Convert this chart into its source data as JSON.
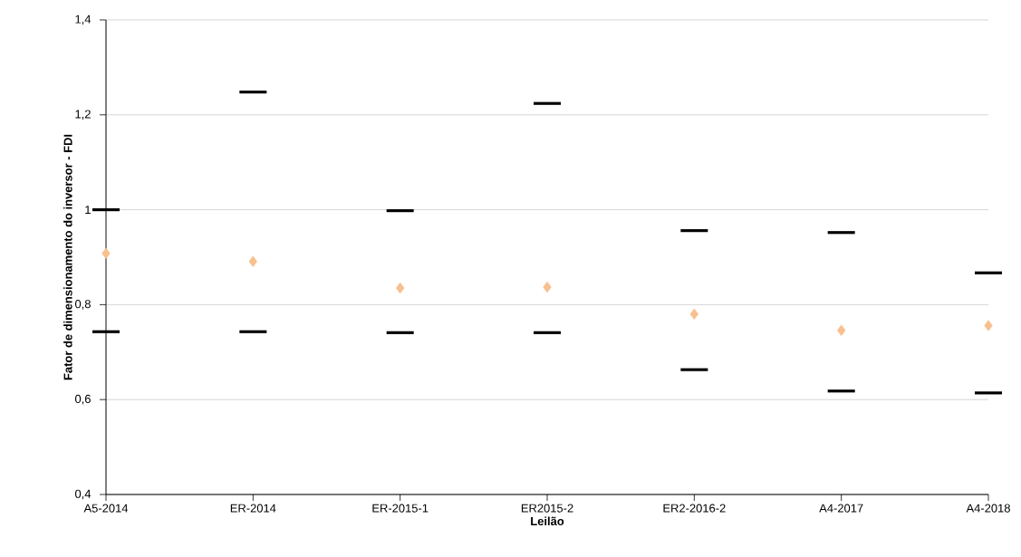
{
  "chart_data": {
    "type": "scatter",
    "xlabel": "Leilão",
    "ylabel": "Fator de dimensionamento do inversor - FDI",
    "categories": [
      "A5-2014",
      "ER-2014",
      "ER-2015-1",
      "ER2015-2",
      "ER2-2016-2",
      "A4-2017",
      "A4-2018"
    ],
    "series": [
      {
        "color": "#f8c08f",
        "values": [
          0.908,
          0.891,
          0.835,
          0.837,
          0.78,
          0.746,
          0.756
        ],
        "errors": [
          [
            0.743,
            1.0
          ],
          [
            0.743,
            1.248
          ],
          [
            0.741,
            0.998
          ],
          [
            0.741,
            1.224
          ],
          [
            0.663,
            0.956
          ],
          [
            0.618,
            0.952
          ],
          [
            0.614,
            0.867
          ]
        ]
      }
    ],
    "marker": "diamond",
    "ylim": [
      0.4,
      1.4
    ],
    "yticks": [
      {
        "value": 0.4,
        "label": "0,4"
      },
      {
        "value": 0.6,
        "label": "0,6"
      },
      {
        "value": 0.8,
        "label": "0,8"
      },
      {
        "value": 1,
        "label": "1"
      },
      {
        "value": 1.2,
        "label": "1,2"
      },
      {
        "value": 1.4,
        "label": "1,4"
      }
    ],
    "grid": "y"
  }
}
